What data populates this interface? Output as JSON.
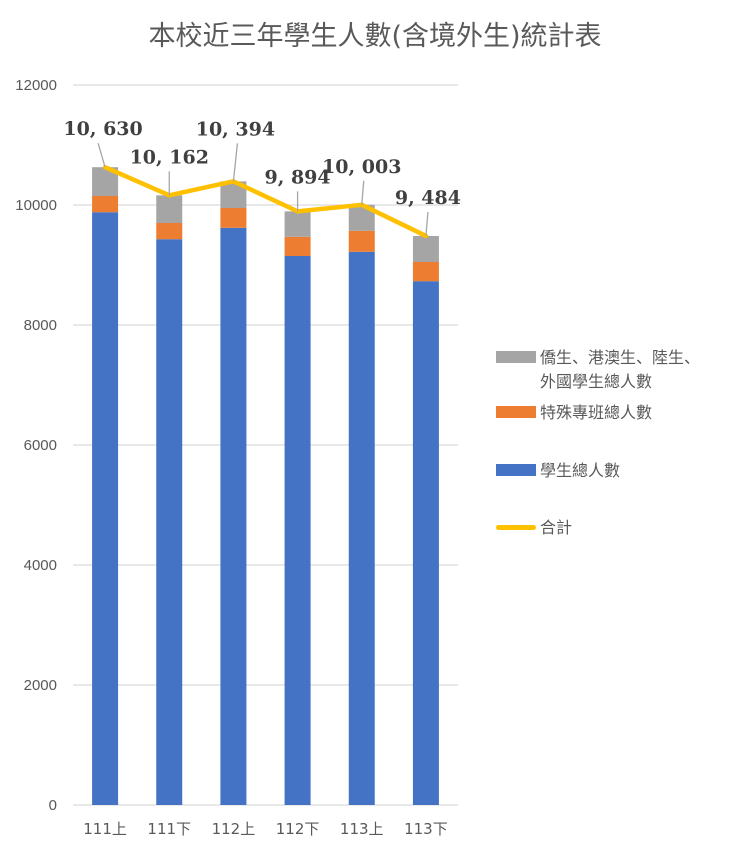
{
  "chart_data": {
    "type": "bar",
    "subtype": "stacked-bar-with-line",
    "title": "本校近三年學生人數(含境外生)統計表",
    "xlabel": "",
    "ylabel": "",
    "categories": [
      "111上",
      "111下",
      "112上",
      "112下",
      "113上",
      "113下"
    ],
    "ylim": [
      0,
      12000
    ],
    "yticks": [
      0,
      2000,
      4000,
      6000,
      8000,
      10000,
      12000
    ],
    "ytick_labels": [
      "0",
      "2000",
      "4000",
      "6000",
      "8000",
      "10000",
      "12000"
    ],
    "grid": true,
    "legend_position": "right",
    "series": [
      {
        "name": "學生總人數",
        "kind": "bar",
        "color": "#4472C4",
        "values": [
          9880,
          9430,
          9620,
          9150,
          9220,
          8730
        ]
      },
      {
        "name": "特殊專班總人數",
        "kind": "bar",
        "color": "#ED7D31",
        "values": [
          270,
          270,
          330,
          320,
          350,
          320
        ]
      },
      {
        "name": "僑生、港澳生、陸生、外國學生總人數",
        "kind": "bar",
        "color": "#A5A5A5",
        "values": [
          480,
          462,
          444,
          424,
          433,
          434
        ]
      },
      {
        "name": "合計",
        "kind": "line",
        "color": "#FFC000",
        "values": [
          10630,
          10162,
          10394,
          9894,
          10003,
          9484
        ]
      }
    ],
    "data_labels": [
      "10, 630",
      "10, 162",
      "10, 394",
      "9, 894",
      "10, 003",
      "9, 484"
    ],
    "legend_order": [
      {
        "name": "僑生、港澳生、陸生、外國學生總人數",
        "line1": "僑生、港澳生、陸生、",
        "line2": "外國學生總人數",
        "color": "#A5A5A5",
        "kind": "bar"
      },
      {
        "name": "特殊專班總人數",
        "line1": "特殊專班總人數",
        "line2": "",
        "color": "#ED7D31",
        "kind": "bar"
      },
      {
        "name": "學生總人數",
        "line1": "學生總人數",
        "line2": "",
        "color": "#4472C4",
        "kind": "bar"
      },
      {
        "name": "合計",
        "line1": "合計",
        "line2": "",
        "color": "#FFC000",
        "kind": "line"
      }
    ]
  }
}
